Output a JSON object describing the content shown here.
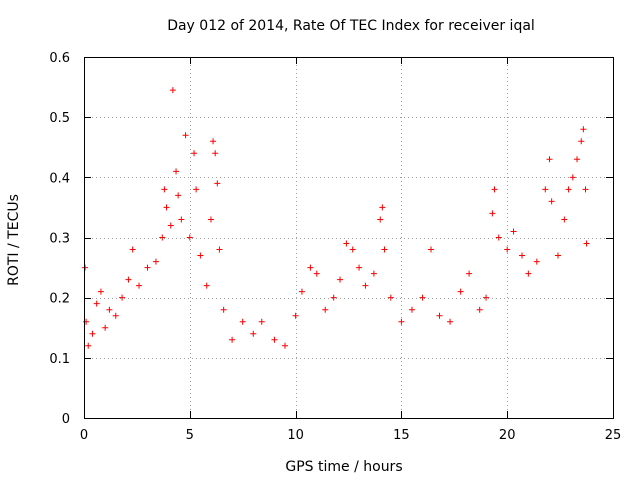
{
  "chart_data": {
    "type": "scatter",
    "title": "Day 012 of 2014, Rate Of TEC Index for receiver iqal",
    "xlabel": "GPS time / hours",
    "ylabel": "ROTI / TECUs",
    "xlim": [
      0,
      25
    ],
    "ylim": [
      0,
      0.6
    ],
    "xticks": [
      "0",
      "5",
      "10",
      "15",
      "20",
      "25"
    ],
    "yticks": [
      "0",
      "0.1",
      "0.2",
      "0.3",
      "0.4",
      "0.5",
      "0.6"
    ],
    "grid": true,
    "marker": "+",
    "color": "#ff0000",
    "series": [
      {
        "name": "ROTI",
        "points": [
          [
            0.05,
            0.25
          ],
          [
            0.1,
            0.16
          ],
          [
            0.2,
            0.12
          ],
          [
            0.4,
            0.14
          ],
          [
            0.6,
            0.19
          ],
          [
            0.8,
            0.21
          ],
          [
            1.0,
            0.15
          ],
          [
            1.2,
            0.18
          ],
          [
            1.5,
            0.17
          ],
          [
            1.8,
            0.2
          ],
          [
            2.1,
            0.23
          ],
          [
            2.3,
            0.28
          ],
          [
            2.6,
            0.22
          ],
          [
            3.0,
            0.25
          ],
          [
            3.4,
            0.26
          ],
          [
            3.7,
            0.3
          ],
          [
            3.8,
            0.38
          ],
          [
            3.9,
            0.35
          ],
          [
            4.1,
            0.32
          ],
          [
            4.2,
            0.545
          ],
          [
            4.35,
            0.41
          ],
          [
            4.45,
            0.37
          ],
          [
            4.6,
            0.33
          ],
          [
            4.8,
            0.47
          ],
          [
            5.0,
            0.3
          ],
          [
            5.2,
            0.44
          ],
          [
            5.3,
            0.38
          ],
          [
            5.5,
            0.27
          ],
          [
            5.8,
            0.22
          ],
          [
            6.0,
            0.33
          ],
          [
            6.1,
            0.46
          ],
          [
            6.2,
            0.44
          ],
          [
            6.3,
            0.39
          ],
          [
            6.4,
            0.28
          ],
          [
            6.6,
            0.18
          ],
          [
            7.0,
            0.13
          ],
          [
            7.5,
            0.16
          ],
          [
            8.0,
            0.14
          ],
          [
            8.4,
            0.16
          ],
          [
            9.0,
            0.13
          ],
          [
            9.5,
            0.12
          ],
          [
            10.0,
            0.17
          ],
          [
            10.3,
            0.21
          ],
          [
            10.7,
            0.25
          ],
          [
            11.0,
            0.24
          ],
          [
            11.4,
            0.18
          ],
          [
            11.8,
            0.2
          ],
          [
            12.1,
            0.23
          ],
          [
            12.4,
            0.29
          ],
          [
            12.7,
            0.28
          ],
          [
            13.0,
            0.25
          ],
          [
            13.3,
            0.22
          ],
          [
            13.7,
            0.24
          ],
          [
            14.0,
            0.33
          ],
          [
            14.1,
            0.35
          ],
          [
            14.2,
            0.28
          ],
          [
            14.5,
            0.2
          ],
          [
            15.0,
            0.16
          ],
          [
            15.5,
            0.18
          ],
          [
            16.0,
            0.2
          ],
          [
            16.4,
            0.28
          ],
          [
            16.8,
            0.17
          ],
          [
            17.3,
            0.16
          ],
          [
            17.8,
            0.21
          ],
          [
            18.2,
            0.24
          ],
          [
            18.7,
            0.18
          ],
          [
            19.0,
            0.2
          ],
          [
            19.3,
            0.34
          ],
          [
            19.4,
            0.38
          ],
          [
            19.6,
            0.3
          ],
          [
            20.0,
            0.28
          ],
          [
            20.3,
            0.31
          ],
          [
            20.7,
            0.27
          ],
          [
            21.0,
            0.24
          ],
          [
            21.4,
            0.26
          ],
          [
            21.8,
            0.38
          ],
          [
            22.0,
            0.43
          ],
          [
            22.1,
            0.36
          ],
          [
            22.4,
            0.27
          ],
          [
            22.7,
            0.33
          ],
          [
            22.9,
            0.38
          ],
          [
            23.1,
            0.4
          ],
          [
            23.3,
            0.43
          ],
          [
            23.5,
            0.46
          ],
          [
            23.6,
            0.48
          ],
          [
            23.7,
            0.38
          ],
          [
            23.75,
            0.29
          ]
        ]
      }
    ]
  }
}
